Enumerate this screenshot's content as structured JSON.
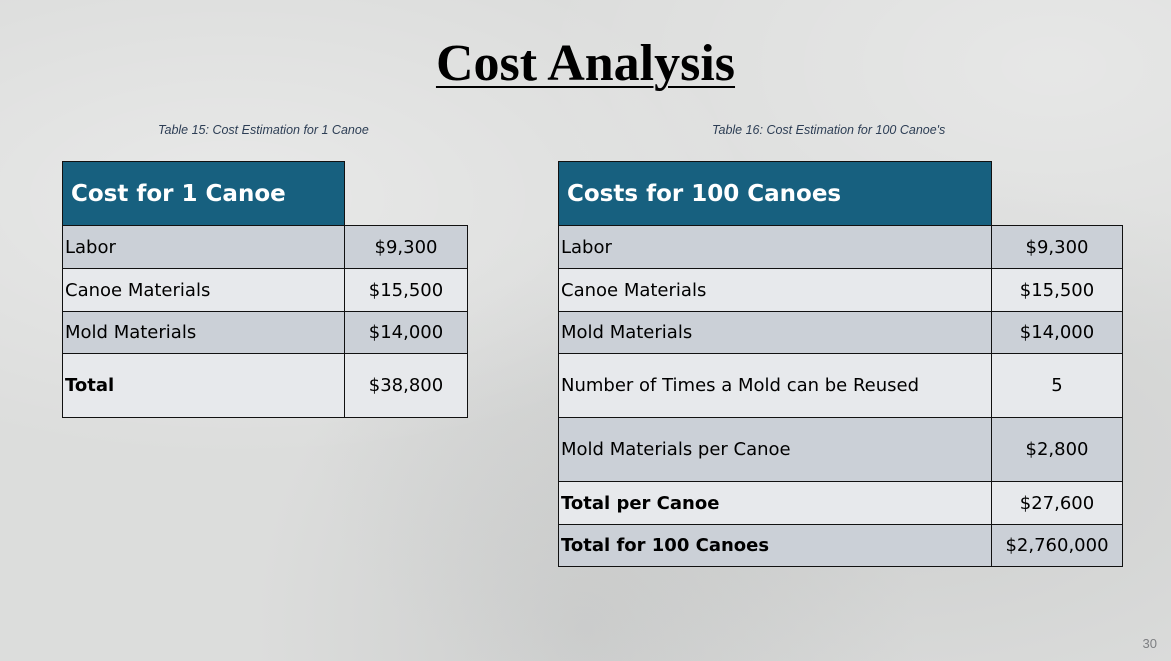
{
  "slide": {
    "title": "Cost Analysis",
    "page_number": "30"
  },
  "table1": {
    "caption": "Table 15: Cost Estimation for 1 Canoe",
    "header": "Cost for 1 Canoe",
    "rows": [
      {
        "label": "Labor",
        "value": "$9,300"
      },
      {
        "label": "Canoe Materials",
        "value": "$15,500"
      },
      {
        "label": "Mold Materials",
        "value": "$14,000"
      },
      {
        "label": "Total",
        "value": "$38,800"
      }
    ]
  },
  "table2": {
    "caption": "Table 16: Cost Estimation for 100 Canoe's",
    "header": "Costs for 100 Canoes",
    "rows": [
      {
        "label": "Labor",
        "value": "$9,300"
      },
      {
        "label": "Canoe Materials",
        "value": "$15,500"
      },
      {
        "label": "Mold Materials",
        "value": "$14,000"
      },
      {
        "label": "Number of Times a Mold can be Reused",
        "value": "5"
      },
      {
        "label": "Mold Materials per Canoe",
        "value": "$2,800"
      },
      {
        "label": "Total per Canoe",
        "value": "$27,600"
      },
      {
        "label": "Total for 100 Canoes",
        "value": "$2,760,000"
      }
    ]
  }
}
